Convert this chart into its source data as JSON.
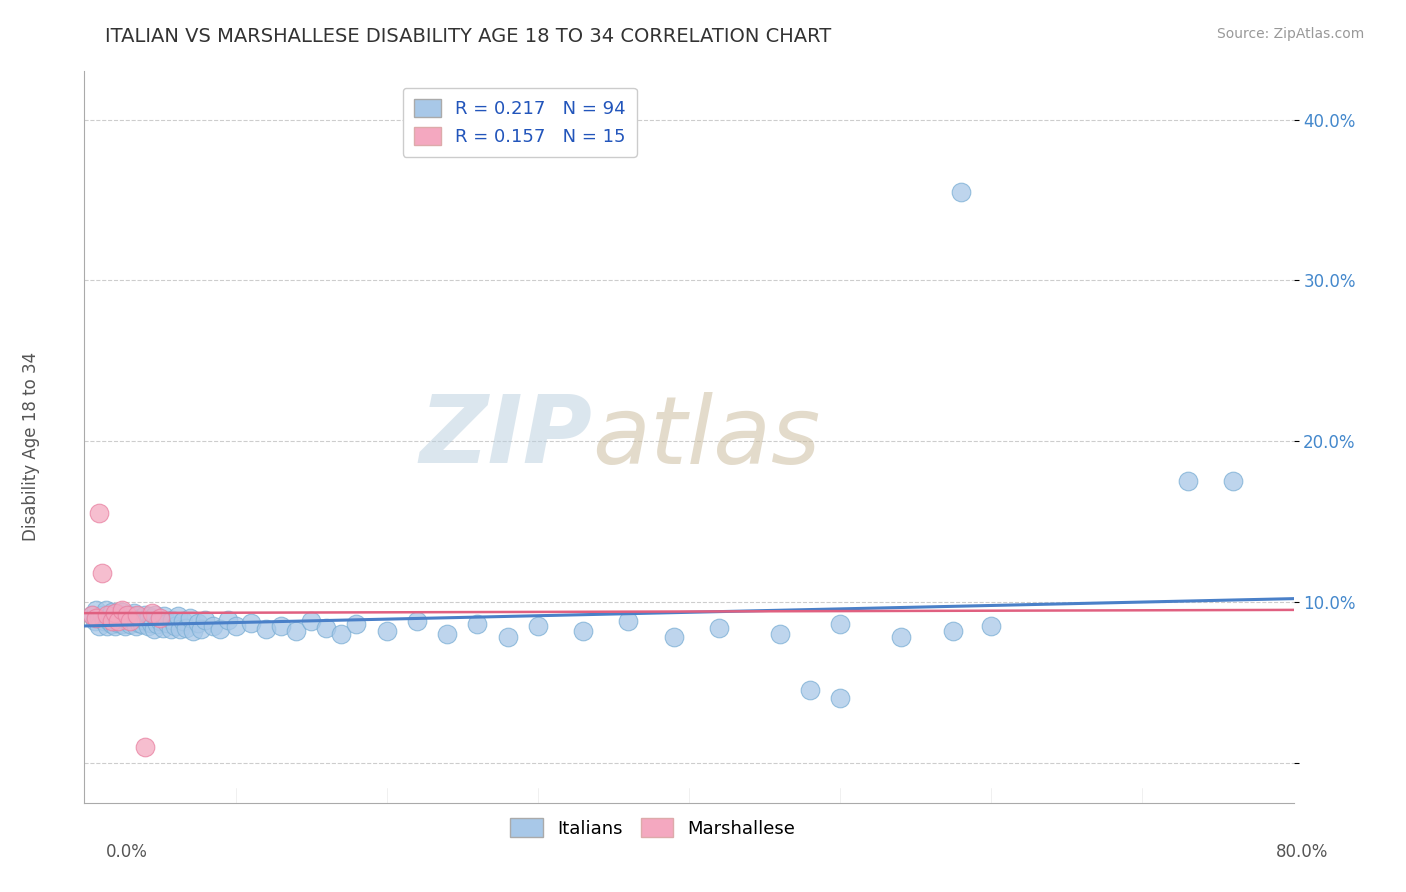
{
  "title": "ITALIAN VS MARSHALLESE DISABILITY AGE 18 TO 34 CORRELATION CHART",
  "source": "Source: ZipAtlas.com",
  "ylabel": "Disability Age 18 to 34",
  "xlim": [
    0.0,
    0.8
  ],
  "ylim": [
    -0.025,
    0.43
  ],
  "ytick_vals": [
    0.0,
    0.1,
    0.2,
    0.3,
    0.4
  ],
  "ytick_labels": [
    "",
    "10.0%",
    "20.0%",
    "30.0%",
    "40.0%"
  ],
  "legend_labels": [
    "Italians",
    "Marshallese"
  ],
  "blue_color": "#a8c8e8",
  "pink_color": "#f4a8c0",
  "blue_edge_color": "#7aaed4",
  "pink_edge_color": "#e880a0",
  "blue_line_color": "#4a80c8",
  "pink_line_color": "#e06080",
  "background_color": "#ffffff",
  "grid_color": "#c8c8c8",
  "watermark_zip_color": "#c8d8e8",
  "watermark_atlas_color": "#d0c8b8",
  "italian_x": [
    0.005,
    0.007,
    0.008,
    0.01,
    0.01,
    0.012,
    0.013,
    0.014,
    0.015,
    0.015,
    0.016,
    0.017,
    0.018,
    0.018,
    0.019,
    0.02,
    0.02,
    0.021,
    0.022,
    0.022,
    0.023,
    0.024,
    0.025,
    0.025,
    0.026,
    0.027,
    0.028,
    0.029,
    0.03,
    0.03,
    0.032,
    0.033,
    0.034,
    0.035,
    0.036,
    0.037,
    0.038,
    0.04,
    0.041,
    0.042,
    0.043,
    0.044,
    0.045,
    0.046,
    0.047,
    0.048,
    0.05,
    0.052,
    0.053,
    0.055,
    0.057,
    0.058,
    0.06,
    0.062,
    0.063,
    0.065,
    0.067,
    0.07,
    0.072,
    0.075,
    0.077,
    0.08,
    0.085,
    0.09,
    0.095,
    0.1,
    0.11,
    0.12,
    0.13,
    0.14,
    0.15,
    0.16,
    0.17,
    0.18,
    0.2,
    0.22,
    0.24,
    0.26,
    0.28,
    0.3,
    0.33,
    0.36,
    0.39,
    0.42,
    0.46,
    0.5,
    0.54,
    0.575,
    0.73,
    0.76,
    0.58,
    0.48,
    0.5,
    0.6
  ],
  "italian_y": [
    0.092,
    0.088,
    0.095,
    0.09,
    0.085,
    0.092,
    0.088,
    0.095,
    0.085,
    0.09,
    0.088,
    0.092,
    0.086,
    0.094,
    0.089,
    0.091,
    0.085,
    0.093,
    0.087,
    0.09,
    0.088,
    0.092,
    0.086,
    0.094,
    0.089,
    0.085,
    0.091,
    0.088,
    0.092,
    0.086,
    0.089,
    0.093,
    0.085,
    0.091,
    0.087,
    0.09,
    0.086,
    0.092,
    0.088,
    0.085,
    0.091,
    0.087,
    0.09,
    0.083,
    0.092,
    0.086,
    0.088,
    0.084,
    0.091,
    0.087,
    0.083,
    0.089,
    0.085,
    0.091,
    0.083,
    0.088,
    0.084,
    0.09,
    0.082,
    0.087,
    0.083,
    0.089,
    0.085,
    0.083,
    0.089,
    0.085,
    0.087,
    0.083,
    0.085,
    0.082,
    0.088,
    0.084,
    0.08,
    0.086,
    0.082,
    0.088,
    0.08,
    0.086,
    0.078,
    0.085,
    0.082,
    0.088,
    0.078,
    0.084,
    0.08,
    0.086,
    0.078,
    0.082,
    0.175,
    0.175,
    0.355,
    0.045,
    0.04,
    0.085
  ],
  "marshallese_x": [
    0.005,
    0.008,
    0.01,
    0.012,
    0.015,
    0.018,
    0.02,
    0.022,
    0.025,
    0.028,
    0.03,
    0.035,
    0.04,
    0.045,
    0.05
  ],
  "marshallese_y": [
    0.092,
    0.09,
    0.155,
    0.118,
    0.092,
    0.088,
    0.093,
    0.088,
    0.095,
    0.092,
    0.088,
    0.092,
    0.01,
    0.093,
    0.09
  ],
  "blue_trend_x": [
    0.0,
    0.8
  ],
  "blue_trend_y": [
    0.085,
    0.102
  ],
  "pink_trend_x": [
    0.0,
    0.8
  ],
  "pink_trend_y": [
    0.093,
    0.095
  ]
}
